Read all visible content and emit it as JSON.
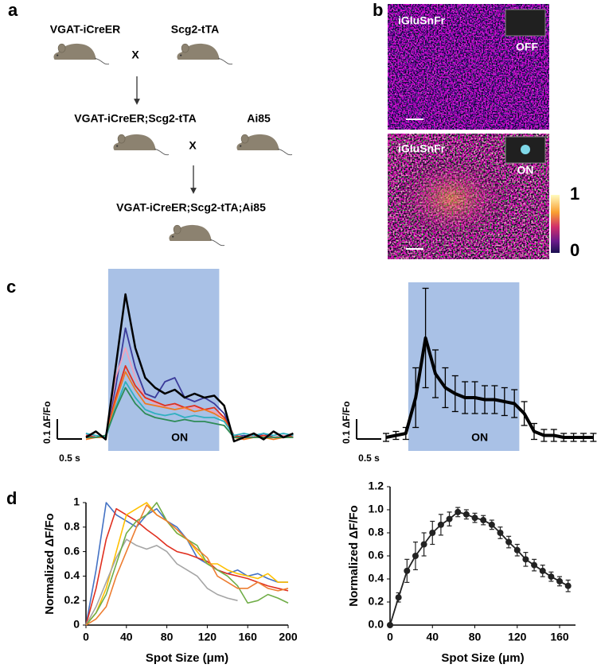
{
  "panel_labels": [
    "a",
    "b",
    "c",
    "d"
  ],
  "breeding": {
    "parents": [
      "VGAT-iCreER",
      "Scg2-tTA"
    ],
    "cross1": "X",
    "offspring": [
      "VGAT-iCreER;Scg2-tTA",
      "Ai85"
    ],
    "cross2": "X",
    "final": "VGAT-iCreER;Scg2-tTA;Ai85"
  },
  "imaging": {
    "images": [
      {
        "label": "iGluSnFr",
        "state": "OFF"
      },
      {
        "label": "iGluSnFr",
        "state": "ON"
      }
    ],
    "colorbar_ticks": [
      1,
      0
    ]
  },
  "chart_data": [
    {
      "type": "trace",
      "x": [
        0,
        0.2,
        0.4,
        0.6,
        0.8,
        1.0,
        1.2,
        1.4,
        1.6,
        1.8,
        2.0,
        2.2,
        2.4,
        2.6,
        2.8,
        3.0,
        3.2,
        3.4,
        3.6,
        3.8,
        4.0,
        4.2
      ],
      "stimulus": {
        "start": 0.45,
        "end": 2.7,
        "label": "ON"
      },
      "scale_bar": {
        "x": {
          "value": 0.5,
          "label": "0.5 s"
        },
        "y": {
          "value": 0.1,
          "label": "0.1 ΔF/Fo"
        }
      },
      "series": [
        {
          "color": "#3b3b9a",
          "values": [
            0.02,
            0.0,
            0.01,
            0.25,
            0.55,
            0.35,
            0.22,
            0.2,
            0.28,
            0.3,
            0.2,
            0.18,
            0.2,
            0.17,
            0.12,
            0.0,
            0.01,
            0.0,
            0.02,
            0.0,
            0.01,
            0.0
          ]
        },
        {
          "color": "#f4a0b8",
          "values": [
            0.0,
            0.01,
            0.0,
            0.3,
            0.45,
            0.3,
            0.2,
            0.17,
            0.15,
            0.16,
            0.14,
            0.15,
            0.14,
            0.13,
            0.1,
            0.0,
            0.0,
            0.01,
            0.0,
            0.0,
            0.01,
            0.0
          ]
        },
        {
          "color": "#e0301e",
          "values": [
            0.01,
            0.0,
            0.0,
            0.2,
            0.36,
            0.26,
            0.2,
            0.18,
            0.16,
            0.17,
            0.15,
            0.16,
            0.14,
            0.15,
            0.1,
            0.01,
            0.0,
            0.0,
            0.01,
            0.0,
            0.0,
            0.01
          ]
        },
        {
          "color": "#f07820",
          "values": [
            -0.01,
            0.0,
            0.0,
            0.18,
            0.33,
            0.24,
            0.17,
            0.16,
            0.15,
            0.14,
            0.15,
            0.13,
            0.14,
            0.12,
            0.09,
            0.0,
            -0.01,
            0.0,
            0.0,
            -0.01,
            0.0,
            0.0
          ]
        },
        {
          "color": "#30b0c0",
          "values": [
            0.02,
            0.01,
            0.0,
            0.15,
            0.28,
            0.2,
            0.14,
            0.12,
            0.11,
            0.12,
            0.1,
            0.11,
            0.1,
            0.1,
            0.08,
            0.01,
            0.02,
            0.01,
            0.02,
            0.01,
            0.02,
            0.01
          ]
        },
        {
          "color": "#2e8b57",
          "values": [
            0.0,
            0.0,
            0.01,
            0.14,
            0.25,
            0.17,
            0.12,
            0.1,
            0.09,
            0.08,
            0.09,
            0.08,
            0.08,
            0.07,
            0.06,
            0.0,
            0.0,
            0.0,
            0.0,
            0.0,
            0.0,
            0.0
          ]
        },
        {
          "color": "#000000",
          "values": [
            0.0,
            0.03,
            -0.01,
            0.35,
            0.72,
            0.45,
            0.3,
            0.25,
            0.22,
            0.24,
            0.2,
            0.22,
            0.2,
            0.21,
            0.16,
            -0.02,
            0.0,
            0.02,
            -0.01,
            0.03,
            0.0,
            0.02
          ]
        }
      ]
    },
    {
      "type": "trace_mean",
      "x": [
        0,
        0.2,
        0.4,
        0.6,
        0.8,
        1.0,
        1.2,
        1.4,
        1.6,
        1.8,
        2.0,
        2.2,
        2.4,
        2.6,
        2.8,
        3.0,
        3.2,
        3.4,
        3.6,
        3.8,
        4.0,
        4.2
      ],
      "stimulus": {
        "start": 0.45,
        "end": 2.7,
        "label": "ON"
      },
      "scale_bar": {
        "x": {
          "value": 0.5,
          "label": "0.5 s"
        },
        "y": {
          "value": 0.1,
          "label": "0.1 ΔF/Fo"
        }
      },
      "color": "#000000",
      "values": [
        0.0,
        0.01,
        0.02,
        0.2,
        0.5,
        0.32,
        0.25,
        0.22,
        0.2,
        0.2,
        0.19,
        0.19,
        0.18,
        0.17,
        0.12,
        0.03,
        0.01,
        0.01,
        0.0,
        0.0,
        0.0,
        0.0
      ],
      "errors": [
        0.02,
        0.02,
        0.03,
        0.15,
        0.25,
        0.12,
        0.1,
        0.09,
        0.08,
        0.08,
        0.07,
        0.07,
        0.07,
        0.07,
        0.06,
        0.04,
        0.03,
        0.03,
        0.02,
        0.02,
        0.02,
        0.02
      ]
    },
    {
      "type": "line",
      "xlabel": "Spot Size (μm)",
      "ylabel": "Normalized ΔF/Fo",
      "xlim": [
        0,
        200
      ],
      "ylim": [
        0,
        1
      ],
      "xticks": [
        0,
        40,
        80,
        120,
        160,
        200
      ],
      "yticks": [
        0,
        0.2,
        0.4,
        0.6,
        0.8,
        1
      ],
      "x": [
        0,
        10,
        20,
        30,
        40,
        50,
        60,
        70,
        80,
        90,
        100,
        110,
        120,
        130,
        140,
        150,
        160,
        170,
        180,
        190,
        200
      ],
      "series": [
        {
          "color": "#4472c4",
          "values": [
            0,
            0.45,
            1.0,
            0.9,
            0.85,
            0.8,
            0.9,
            0.95,
            0.85,
            0.8,
            0.7,
            0.55,
            0.5,
            0.45,
            0.42,
            0.45,
            0.4,
            0.42,
            0.38,
            0.35,
            0.35
          ]
        },
        {
          "color": "#e03020",
          "values": [
            0,
            0.3,
            0.7,
            0.95,
            0.9,
            0.85,
            0.78,
            0.72,
            0.65,
            0.6,
            0.58,
            0.55,
            0.52,
            0.45,
            0.42,
            0.4,
            0.38,
            0.35,
            0.32,
            0.3,
            0.28
          ]
        },
        {
          "color": "#ffc000",
          "values": [
            0,
            0.1,
            0.3,
            0.6,
            0.9,
            0.95,
            1.0,
            0.9,
            0.85,
            0.75,
            0.7,
            0.6,
            0.5,
            0.5,
            0.45,
            0.42,
            0.4,
            0.38,
            0.42,
            0.35,
            0.35
          ]
        },
        {
          "color": "#a5a5a5",
          "values": [
            0,
            0.15,
            0.35,
            0.55,
            0.7,
            0.65,
            0.62,
            0.65,
            0.6,
            0.5,
            0.45,
            0.4,
            0.3,
            0.25,
            0.22,
            0.2,
            null,
            null,
            null,
            null,
            null
          ]
        },
        {
          "color": "#70ad47",
          "values": [
            0,
            0.1,
            0.25,
            0.5,
            0.75,
            0.85,
            0.9,
            1.0,
            0.85,
            0.75,
            0.7,
            0.65,
            0.5,
            0.45,
            0.4,
            0.32,
            0.18,
            0.2,
            0.25,
            0.22,
            0.18
          ]
        },
        {
          "color": "#ed7d31",
          "values": [
            0,
            0.05,
            0.15,
            0.4,
            0.6,
            0.8,
            0.98,
            0.9,
            0.85,
            0.78,
            0.7,
            0.62,
            0.55,
            0.4,
            0.35,
            0.3,
            0.3,
            0.35,
            0.3,
            0.28,
            0.3
          ]
        }
      ]
    },
    {
      "type": "errorbar",
      "xlabel": "Spot Size (μm)",
      "ylabel": "Normalized ΔF/Fo",
      "xlim": [
        0,
        175
      ],
      "ylim": [
        0,
        1.2
      ],
      "xticks": [
        0,
        40,
        80,
        120,
        160
      ],
      "yticks": [
        {
          "value": 0,
          "label": "0.0"
        },
        0.2,
        0.4,
        0.6,
        0.8,
        {
          "value": 1,
          "label": "1.0"
        },
        1.2
      ],
      "x": [
        0,
        8,
        16,
        24,
        32,
        40,
        48,
        56,
        64,
        72,
        80,
        88,
        96,
        104,
        112,
        120,
        128,
        136,
        144,
        152,
        160,
        168
      ],
      "color": "#222222",
      "values": [
        0,
        0.24,
        0.47,
        0.6,
        0.7,
        0.8,
        0.87,
        0.92,
        0.98,
        0.96,
        0.93,
        0.91,
        0.87,
        0.8,
        0.72,
        0.65,
        0.57,
        0.52,
        0.47,
        0.42,
        0.38,
        0.34
      ],
      "errors": [
        0,
        0.04,
        0.1,
        0.12,
        0.1,
        0.1,
        0.09,
        0.06,
        0.04,
        0.04,
        0.04,
        0.04,
        0.04,
        0.05,
        0.05,
        0.05,
        0.06,
        0.05,
        0.05,
        0.04,
        0.04,
        0.05
      ]
    }
  ]
}
